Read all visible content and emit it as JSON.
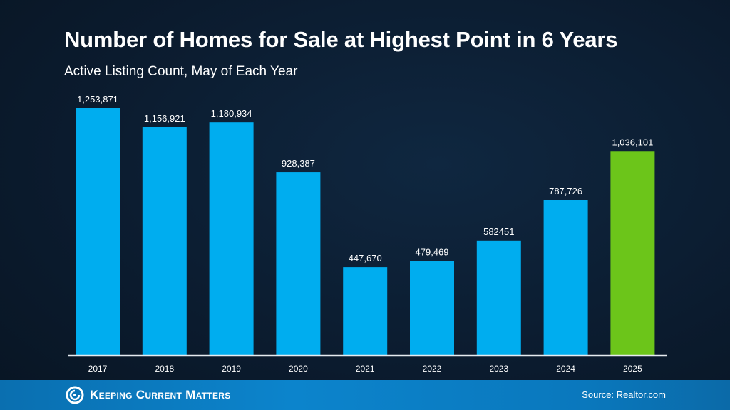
{
  "colors": {
    "bar": "#00adef",
    "highlight_bar": "#6cc51a",
    "background": "#0b1b2e",
    "footer": "#0c84cc"
  },
  "footer": {
    "brand": "Keeping Current Matters",
    "source": "Source: Realtor.com",
    "logo_icon": "swirl-icon"
  },
  "chart_data": {
    "type": "bar",
    "title": "Number of Homes for Sale at Highest Point in 6 Years",
    "subtitle": "Active Listing Count, May of Each Year",
    "categories": [
      "2017",
      "2018",
      "2019",
      "2020",
      "2021",
      "2022",
      "2023",
      "2024",
      "2025"
    ],
    "values": [
      1253871,
      1156921,
      1180934,
      928387,
      447670,
      479469,
      582451,
      787726,
      1036101
    ],
    "data_labels": [
      "1,253,871",
      "1,156,921",
      "1,180,934",
      "928,387",
      "447,670",
      "479,469",
      "582451",
      "787,726",
      "1,036,101"
    ],
    "highlight_category": "2025",
    "ylim": [
      0,
      1253871
    ],
    "grid": false,
    "legend": "none"
  }
}
